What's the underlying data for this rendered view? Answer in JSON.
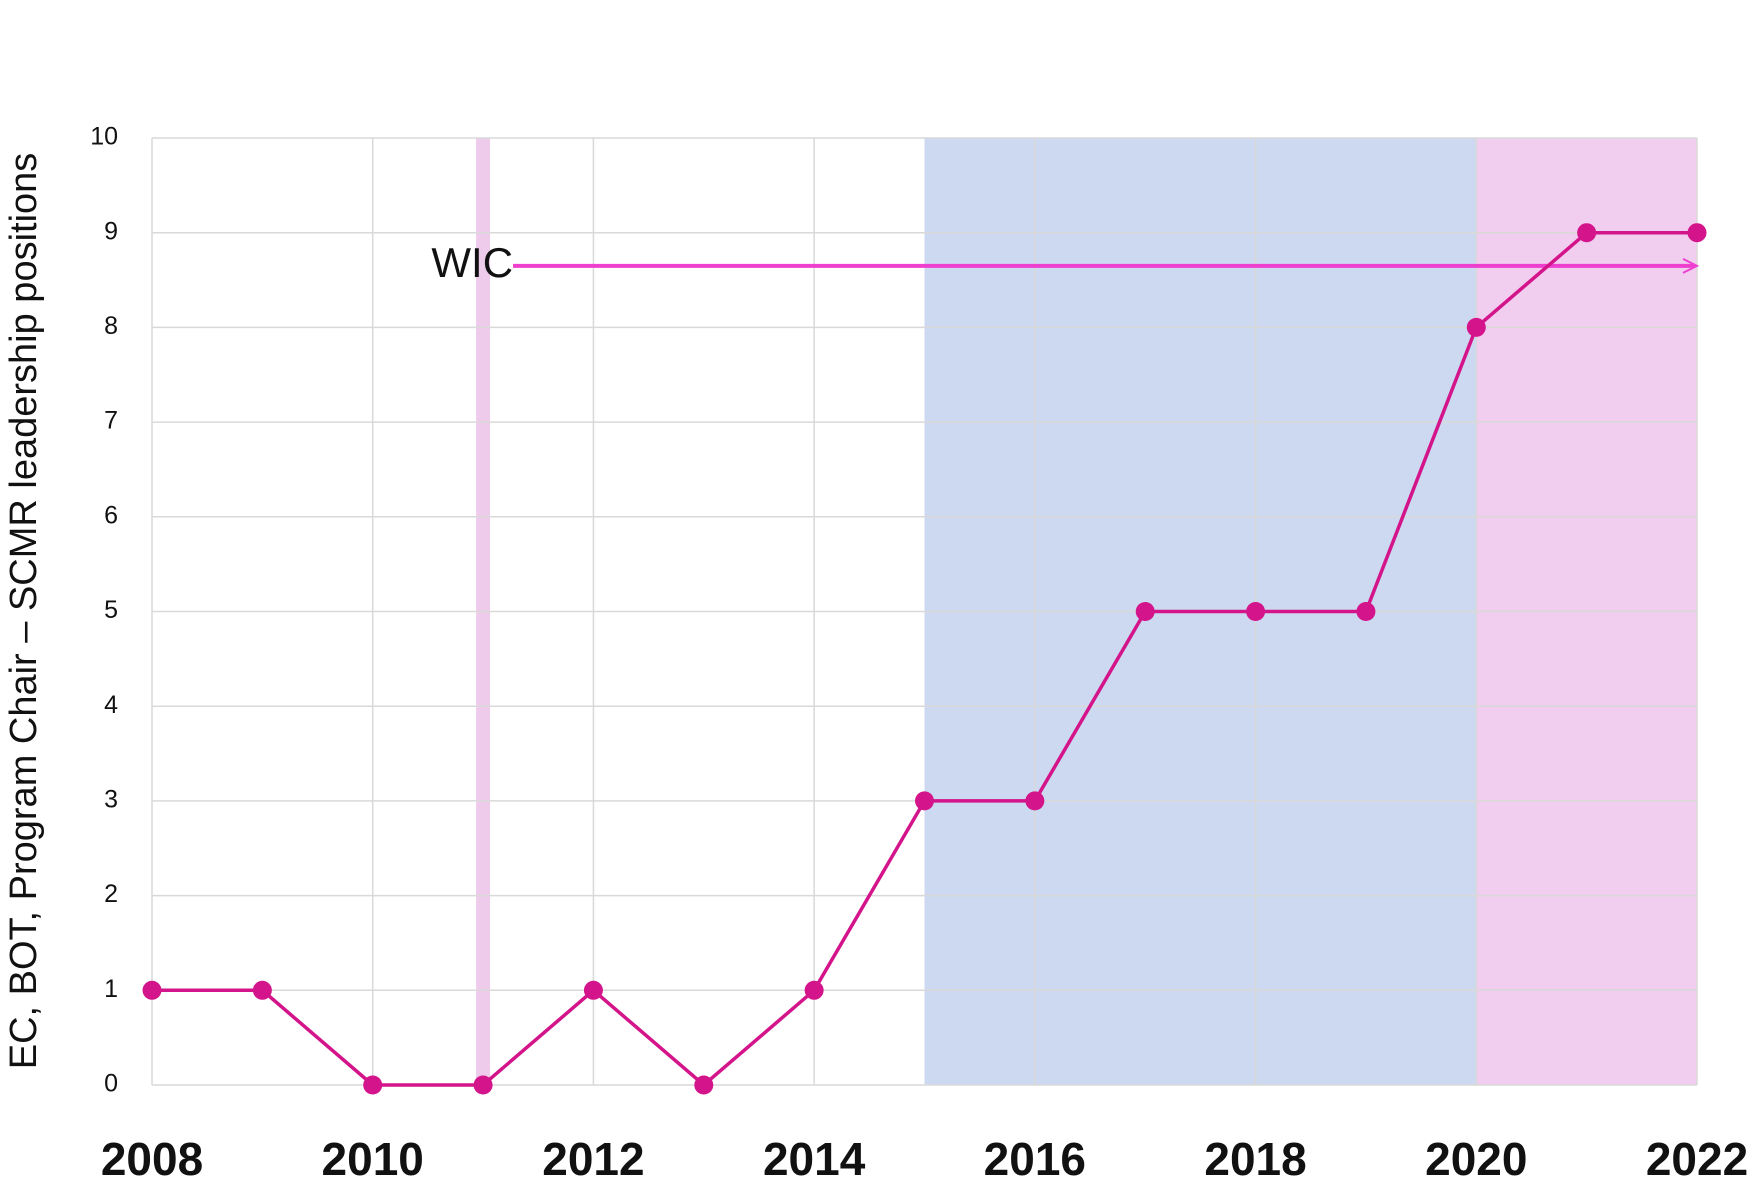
{
  "chart_data": {
    "type": "line",
    "y_label": "EC, BOT, Program Chair – SCMR leadership positions",
    "x": [
      2008,
      2009,
      2010,
      2011,
      2012,
      2013,
      2014,
      2015,
      2016,
      2017,
      2018,
      2019,
      2020,
      2021,
      2022
    ],
    "values": [
      1,
      1,
      0,
      0,
      1,
      0,
      1,
      3,
      3,
      5,
      5,
      5,
      8,
      9,
      9
    ],
    "color": "#d4148a",
    "xlim": [
      2008,
      2022
    ],
    "xticks": [
      2008,
      2010,
      2012,
      2014,
      2016,
      2018,
      2020,
      2022
    ],
    "ylim": [
      0,
      10
    ],
    "yticks": [
      0,
      1,
      2,
      3,
      4,
      5,
      6,
      7,
      8,
      9,
      10
    ],
    "grid": true,
    "bands": [
      {
        "from": 2015,
        "to": 2020,
        "color": "#ccd9f0"
      },
      {
        "from": 2020,
        "to": 2022,
        "color": "#f1cdef"
      }
    ],
    "marker_line": {
      "x": 2011,
      "color": "#eecbeb"
    },
    "annotation": {
      "text": "WIC",
      "x": 2011,
      "y": 8.65,
      "color": "#ee3fcf"
    }
  }
}
